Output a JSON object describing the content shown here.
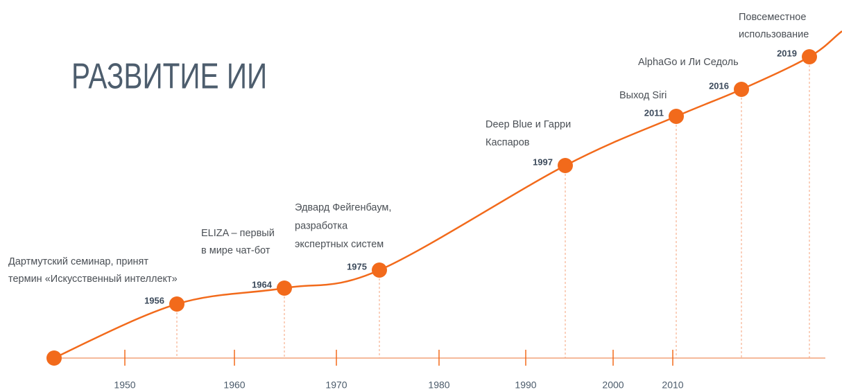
{
  "title": "РАЗВИТИЕ ИИ",
  "axis_labels": [
    "1950",
    "1960",
    "1970",
    "1980",
    "1990",
    "2000",
    "2010"
  ],
  "events": [
    {
      "year": "1956",
      "text": [
        "Дартмутский семинар, принят",
        "термин «Искусственный интеллект»"
      ]
    },
    {
      "year": "1964",
      "text": [
        "ELIZA – первый",
        "в мире чат-бот"
      ]
    },
    {
      "year": "1975",
      "text": [
        "Эдвард Фейгенбаум,",
        "разработка",
        "экспертных систем"
      ]
    },
    {
      "year": "1997",
      "text": [
        "Deep Blue и Гарри",
        "Каспаров"
      ]
    },
    {
      "year": "2011",
      "text": [
        "Выход Siri"
      ]
    },
    {
      "year": "2016",
      "text": [
        "AlphaGo и Ли Седоль"
      ]
    },
    {
      "year": "2019",
      "text": [
        "Повсеместное",
        "использование"
      ]
    }
  ]
}
